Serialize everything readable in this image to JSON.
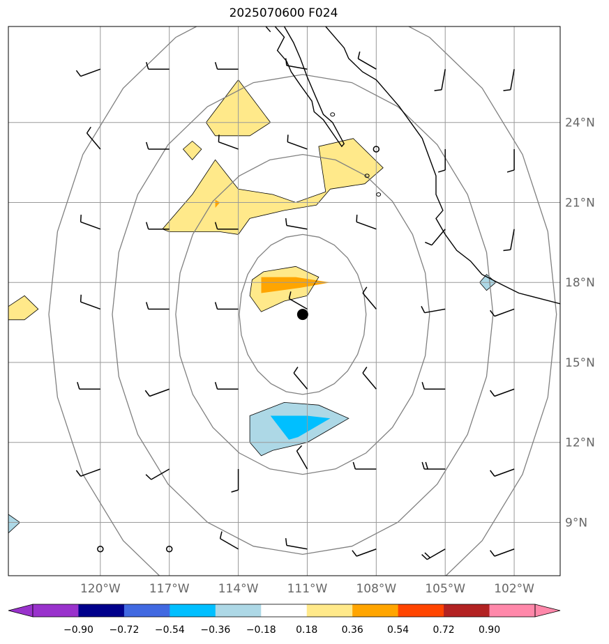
{
  "title": "2025070600 F024",
  "colors": {
    "grid": "#999999",
    "range_ring": "#808080",
    "coast": "#000000",
    "barb": "#000000",
    "label": "#666666"
  },
  "map": {
    "lon_range": [
      -124.0,
      -100.0
    ],
    "lat_range": [
      7.0,
      27.6
    ],
    "meridians": [
      -120,
      -117,
      -114,
      -111,
      -108,
      -105,
      -102
    ],
    "parallels": [
      9,
      12,
      15,
      18,
      21,
      24
    ],
    "lon_labels": [
      "120°W",
      "117°W",
      "114°W",
      "111°W",
      "108°W",
      "105°W",
      "102°W"
    ],
    "lat_labels": [
      "9°N",
      "12°N",
      "15°N",
      "18°N",
      "21°N",
      "24°N"
    ],
    "storm_center": {
      "lon": -111.2,
      "lat": 16.8
    },
    "range_rings_deg": [
      3,
      6,
      9,
      12
    ]
  },
  "colorbar": {
    "colors": [
      "#9932cc",
      "#00008b",
      "#4169e1",
      "#00bfff",
      "#add8e6",
      "#ffffff",
      "#ffe98a",
      "#ffa500",
      "#ff4500",
      "#b22222",
      "#ff88aa",
      "#ff88aa"
    ],
    "tick_labels": [
      "−0.90",
      "−0.72",
      "−0.54",
      "−0.36",
      "−0.18",
      "0.18",
      "0.36",
      "0.54",
      "0.72",
      "0.90"
    ]
  },
  "shaded_regions": [
    {
      "level": "0.18",
      "color": "#ffe98a",
      "points": [
        [
          -115.4,
          24.0
        ],
        [
          -114.0,
          25.6
        ],
        [
          -112.6,
          24.0
        ],
        [
          -113.5,
          23.5
        ],
        [
          -115.0,
          23.5
        ]
      ]
    },
    {
      "level": "0.18",
      "color": "#ffe98a",
      "points": [
        [
          -116.4,
          23.0
        ],
        [
          -116.0,
          23.3
        ],
        [
          -115.6,
          23.0
        ],
        [
          -116.0,
          22.6
        ]
      ]
    },
    {
      "level": "0.18",
      "color": "#ffe98a",
      "points": [
        [
          -117.3,
          20.0
        ],
        [
          -116.0,
          21.3
        ],
        [
          -115.0,
          22.6
        ],
        [
          -114.0,
          21.5
        ],
        [
          -112.5,
          21.3
        ],
        [
          -111.5,
          21.0
        ],
        [
          -110.2,
          21.4
        ],
        [
          -110.5,
          23.1
        ],
        [
          -109.0,
          23.4
        ],
        [
          -107.7,
          22.3
        ],
        [
          -108.5,
          21.7
        ],
        [
          -110.0,
          21.5
        ],
        [
          -110.6,
          20.9
        ],
        [
          -112.0,
          20.7
        ],
        [
          -113.5,
          20.4
        ],
        [
          -114.0,
          19.8
        ],
        [
          -114.8,
          19.9
        ],
        [
          -117.0,
          19.9
        ]
      ]
    },
    {
      "level": "0.18",
      "color": "#ffe98a",
      "points": [
        [
          -112.9,
          18.4
        ],
        [
          -111.5,
          18.6
        ],
        [
          -110.5,
          18.2
        ],
        [
          -111.0,
          17.5
        ],
        [
          -112.0,
          17.3
        ],
        [
          -113.0,
          16.9
        ],
        [
          -113.5,
          17.5
        ],
        [
          -113.4,
          18.1
        ]
      ]
    },
    {
      "level": "0.18",
      "color": "#ffe98a",
      "points": [
        [
          -124.0,
          17.1
        ],
        [
          -123.3,
          17.5
        ],
        [
          -122.7,
          17.0
        ],
        [
          -123.3,
          16.6
        ],
        [
          -124.0,
          16.6
        ]
      ]
    },
    {
      "level": "0.36",
      "color": "#ffa500",
      "points": [
        [
          -113.0,
          18.2
        ],
        [
          -111.5,
          18.2
        ],
        [
          -110.0,
          18.0
        ],
        [
          -111.3,
          17.8
        ],
        [
          -113.0,
          17.6
        ]
      ]
    },
    {
      "level": "0.36",
      "color": "#ffa500",
      "points": [
        [
          -115.0,
          21.1
        ],
        [
          -114.8,
          21.0
        ],
        [
          -115.0,
          20.8
        ]
      ]
    },
    {
      "level": "-0.18",
      "color": "#add8e6",
      "points": [
        [
          -113.5,
          13.0
        ],
        [
          -112.0,
          13.5
        ],
        [
          -110.5,
          13.4
        ],
        [
          -109.2,
          12.9
        ],
        [
          -110.0,
          12.5
        ],
        [
          -111.0,
          12.0
        ],
        [
          -112.5,
          11.7
        ],
        [
          -113.0,
          11.5
        ],
        [
          -113.5,
          12.0
        ]
      ]
    },
    {
      "level": "-0.18",
      "color": "#add8e6",
      "points": [
        [
          -103.5,
          18.0
        ],
        [
          -103.2,
          18.3
        ],
        [
          -102.8,
          18.0
        ],
        [
          -103.2,
          17.7
        ]
      ]
    },
    {
      "level": "-0.18",
      "color": "#add8e6",
      "points": [
        [
          -124.0,
          9.3
        ],
        [
          -123.5,
          9.0
        ],
        [
          -124.0,
          8.6
        ]
      ]
    },
    {
      "level": "-0.36",
      "color": "#00bfff",
      "points": [
        [
          -112.6,
          13.0
        ],
        [
          -111.0,
          13.0
        ],
        [
          -110.0,
          12.9
        ],
        [
          -111.4,
          12.2
        ],
        [
          -111.8,
          12.1
        ]
      ]
    }
  ],
  "wind_barbs": {
    "lons": [
      -120,
      -117,
      -114,
      -111,
      -108,
      -105,
      -102
    ],
    "lats": [
      26,
      23,
      20,
      17,
      14,
      11,
      8
    ],
    "rows": [
      [
        [
          250,
          10
        ],
        [
          270,
          10
        ],
        [
          270,
          10
        ],
        [
          280,
          10
        ],
        [
          300,
          10
        ],
        [
          190,
          10
        ],
        [
          190,
          10
        ]
      ],
      [
        [
          320,
          10
        ],
        [
          270,
          10
        ],
        [
          290,
          10
        ],
        [
          290,
          10
        ],
        [
          0,
          0
        ],
        [
          180,
          10
        ],
        [
          180,
          10
        ]
      ],
      [
        [
          290,
          10
        ],
        [
          270,
          10
        ],
        [
          270,
          10
        ],
        [
          280,
          10
        ],
        [
          290,
          10
        ],
        [
          220,
          10
        ],
        [
          190,
          10
        ]
      ],
      [
        [
          290,
          10
        ],
        [
          270,
          10
        ],
        [
          270,
          10
        ],
        [
          300,
          10
        ],
        [
          320,
          10
        ],
        [
          260,
          10
        ],
        [
          250,
          10
        ]
      ],
      [
        [
          270,
          10
        ],
        [
          250,
          10
        ],
        [
          270,
          10
        ],
        [
          320,
          10
        ],
        [
          320,
          10
        ],
        [
          270,
          10
        ],
        [
          250,
          10
        ]
      ],
      [
        [
          250,
          10
        ],
        [
          240,
          10
        ],
        [
          180,
          10
        ],
        [
          330,
          10
        ],
        [
          270,
          10
        ],
        [
          270,
          15
        ],
        [
          250,
          10
        ]
      ],
      [
        [
          0,
          0
        ],
        [
          0,
          0
        ],
        [
          300,
          10
        ],
        [
          280,
          10
        ],
        [
          250,
          10
        ],
        [
          240,
          15
        ],
        [
          250,
          10
        ]
      ]
    ]
  }
}
